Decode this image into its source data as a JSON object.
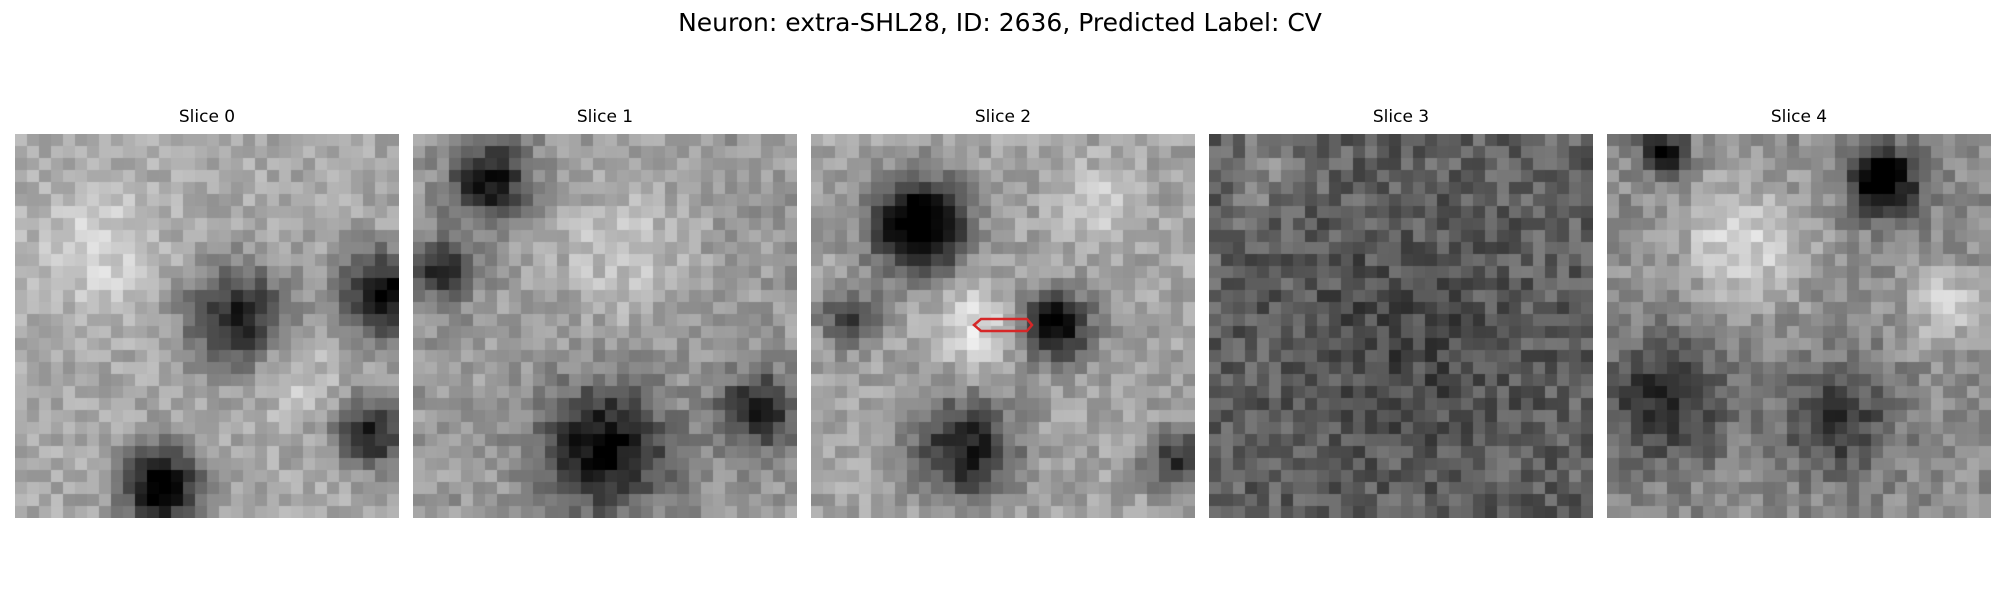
{
  "figure": {
    "title": "Neuron: extra-SHL28, ID: 2636, Predicted Label: CV"
  },
  "panels": [
    {
      "title": "Slice 0",
      "seed": 11,
      "brightness": 0.66,
      "contrast": 0.55,
      "blobs": [
        [
          0.58,
          0.48,
          0.13,
          -0.55
        ],
        [
          0.96,
          0.42,
          0.11,
          -0.65
        ],
        [
          0.38,
          0.92,
          0.1,
          -0.75
        ],
        [
          0.93,
          0.78,
          0.09,
          -0.55
        ],
        [
          0.22,
          0.3,
          0.16,
          0.18
        ],
        [
          0.72,
          0.62,
          0.1,
          0.15
        ]
      ]
    },
    {
      "title": "Slice 1",
      "seed": 23,
      "brightness": 0.6,
      "contrast": 0.6,
      "blobs": [
        [
          0.2,
          0.12,
          0.1,
          -0.55
        ],
        [
          0.08,
          0.35,
          0.08,
          -0.45
        ],
        [
          0.5,
          0.82,
          0.16,
          -0.6
        ],
        [
          0.9,
          0.72,
          0.1,
          -0.5
        ],
        [
          0.55,
          0.3,
          0.18,
          0.18
        ]
      ]
    },
    {
      "title": "Slice 2",
      "seed": 37,
      "brightness": 0.64,
      "contrast": 0.58,
      "blobs": [
        [
          0.28,
          0.24,
          0.12,
          -0.8
        ],
        [
          0.64,
          0.5,
          0.09,
          -0.65
        ],
        [
          0.1,
          0.48,
          0.07,
          -0.45
        ],
        [
          0.4,
          0.82,
          0.13,
          -0.55
        ],
        [
          0.95,
          0.85,
          0.08,
          -0.45
        ],
        [
          0.42,
          0.5,
          0.1,
          0.25
        ],
        [
          0.75,
          0.18,
          0.1,
          0.15
        ]
      ]
    },
    {
      "title": "Slice 3",
      "seed": 53,
      "brightness": 0.38,
      "contrast": 0.75,
      "blobs": [
        [
          0.5,
          0.55,
          0.3,
          -0.1
        ],
        [
          0.15,
          0.1,
          0.1,
          0.15
        ]
      ]
    },
    {
      "title": "Slice 4",
      "seed": 71,
      "brightness": 0.55,
      "contrast": 0.62,
      "blobs": [
        [
          0.72,
          0.12,
          0.09,
          -0.65
        ],
        [
          0.15,
          0.05,
          0.06,
          -0.55
        ],
        [
          0.15,
          0.7,
          0.16,
          -0.4
        ],
        [
          0.6,
          0.75,
          0.14,
          -0.35
        ],
        [
          0.35,
          0.28,
          0.16,
          0.3
        ],
        [
          0.88,
          0.45,
          0.1,
          0.25
        ]
      ]
    }
  ],
  "marker": {
    "panel_index": 2,
    "color": "#d62728",
    "shape": "hexagon-outline"
  },
  "colormap": "gray"
}
